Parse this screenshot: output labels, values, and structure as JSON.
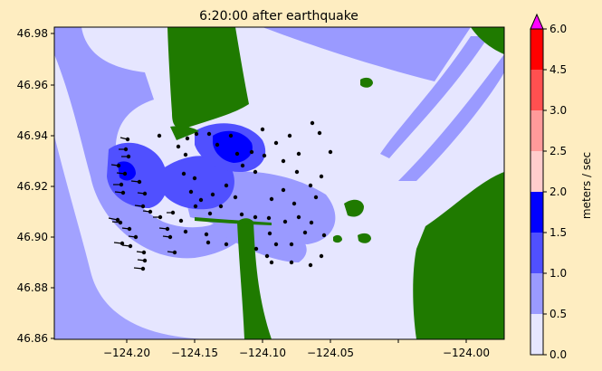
{
  "plot": {
    "title": "6:20:00 after earthquake",
    "x_ticks": [
      "−124.20",
      "−124.15",
      "−124.10",
      "−124.05",
      "−124.00"
    ],
    "y_ticks": [
      "46.98",
      "46.96",
      "46.94",
      "46.92",
      "46.90",
      "46.88",
      "46.86"
    ]
  },
  "colorbar": {
    "label": "meters / sec",
    "ticks": [
      "0.0",
      "0.5",
      "1.0",
      "1.5",
      "2.0",
      "2.5",
      "3.0",
      "4.5",
      "6.0"
    ],
    "colors": [
      "#e6e6ff",
      "#9a9aff",
      "#5050ff",
      "#0000ff",
      "#ffcccc",
      "#ff9a9a",
      "#ff5050",
      "#ff0000"
    ],
    "extend_color": "#ff00ff"
  },
  "colors": {
    "background": "#feedc1",
    "land": "#1f7a00",
    "water_low": "#e6e6ff",
    "water_mid": "#9a9aff",
    "water_high": "#5050ff",
    "water_peak": "#0000ff"
  }
}
